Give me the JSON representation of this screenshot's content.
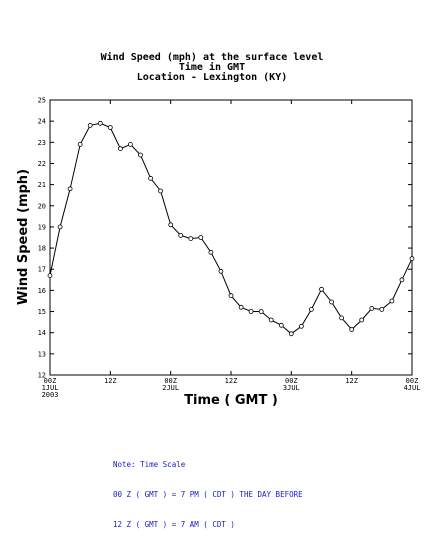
{
  "chart_data": {
    "type": "line",
    "title_lines": [
      "Wind Speed (mph) at the surface level",
      "Time in GMT",
      "Location - Lexington (KY)"
    ],
    "xlabel": "Time ( GMT )",
    "ylabel": "Wind Speed (mph)",
    "ylim": [
      12,
      25
    ],
    "yticks": [
      12,
      13,
      14,
      15,
      16,
      17,
      18,
      19,
      20,
      21,
      22,
      23,
      24,
      25
    ],
    "xlim_hours": [
      0,
      72
    ],
    "xticks": [
      {
        "hour": 0,
        "lines": [
          "00Z",
          "1JUL",
          "2003"
        ]
      },
      {
        "hour": 12,
        "lines": [
          "12Z"
        ]
      },
      {
        "hour": 24,
        "lines": [
          "00Z",
          "2JUL"
        ]
      },
      {
        "hour": 36,
        "lines": [
          "12Z"
        ]
      },
      {
        "hour": 48,
        "lines": [
          "00Z",
          "3JUL"
        ]
      },
      {
        "hour": 60,
        "lines": [
          "12Z"
        ]
      },
      {
        "hour": 72,
        "lines": [
          "00Z",
          "4JUL"
        ]
      }
    ],
    "x_hours": [
      0,
      2,
      4,
      6,
      8,
      10,
      12,
      14,
      16,
      18,
      20,
      22,
      24,
      26,
      28,
      30,
      32,
      34,
      36,
      38,
      40,
      42,
      44,
      46,
      48,
      50,
      52,
      54,
      56,
      58,
      60,
      62,
      64,
      66,
      68,
      70,
      72
    ],
    "values": [
      16.7,
      19.0,
      20.8,
      22.9,
      23.8,
      23.9,
      23.7,
      22.7,
      22.9,
      22.4,
      21.3,
      20.7,
      19.1,
      18.6,
      18.45,
      18.5,
      17.8,
      16.9,
      15.75,
      15.2,
      15.0,
      15.0,
      14.6,
      14.35,
      13.95,
      14.3,
      15.1,
      16.05,
      15.45,
      14.7,
      14.15,
      14.6,
      15.15,
      15.1,
      15.5,
      16.5,
      17.5
    ],
    "grid": false,
    "series_color": "#000000"
  },
  "note": {
    "lines": [
      "Note: Time Scale",
      "00 Z ( GMT ) = 7 PM ( CDT ) THE DAY BEFORE",
      "12 Z ( GMT ) = 7 AM ( CDT )"
    ],
    "color": "#1a1acc"
  }
}
